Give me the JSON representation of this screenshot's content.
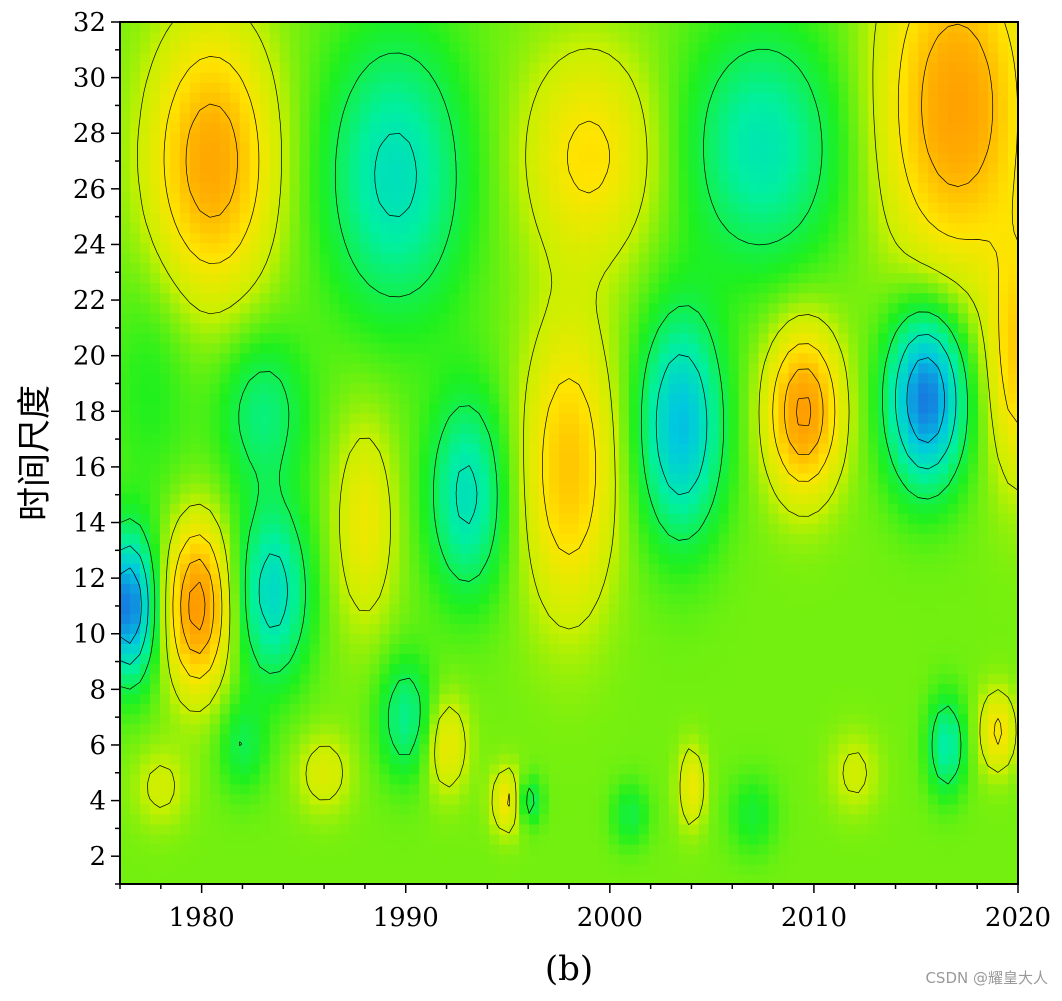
{
  "chart_data": {
    "type": "heatmap",
    "title": "",
    "xlabel": "",
    "ylabel": "时间尺度",
    "caption": "(b)",
    "xlim": [
      1976,
      2020
    ],
    "ylim": [
      1,
      32
    ],
    "x_ticks": [
      1980,
      1990,
      2000,
      2010,
      2020
    ],
    "y_ticks": [
      2,
      4,
      6,
      8,
      10,
      12,
      14,
      16,
      18,
      20,
      22,
      24,
      26,
      28,
      30,
      32
    ],
    "x_tick_labels": [
      "1980",
      "1990",
      "2000",
      "2010",
      "2020"
    ],
    "y_tick_labels": [
      "2",
      "4",
      "6",
      "8",
      "10",
      "12",
      "14",
      "16",
      "18",
      "20",
      "22",
      "24",
      "26",
      "28",
      "30",
      "32"
    ],
    "colormap": [
      "#1a6ee0",
      "#00c8e0",
      "#00f0a0",
      "#1ef01e",
      "#c8f000",
      "#ffe400",
      "#ffb000",
      "#ff9000"
    ],
    "grid": false,
    "contour_lines": true,
    "features": [
      {
        "x": 1980.5,
        "y": 27.0,
        "sx": 2.0,
        "sy": 3.2,
        "value": 0.8
      },
      {
        "x": 1989.5,
        "y": 26.5,
        "sx": 2.4,
        "sy": 3.5,
        "value": -0.55
      },
      {
        "x": 1999.0,
        "y": 27.2,
        "sx": 2.2,
        "sy": 2.6,
        "value": 0.45
      },
      {
        "x": 2007.5,
        "y": 27.5,
        "sx": 2.6,
        "sy": 3.0,
        "value": -0.5
      },
      {
        "x": 2017.0,
        "y": 29.0,
        "sx": 2.4,
        "sy": 4.0,
        "value": 0.85
      },
      {
        "x": 2020.0,
        "y": 20.0,
        "sx": 1.0,
        "sy": 3.0,
        "value": 0.55
      },
      {
        "x": 1976.4,
        "y": 11.0,
        "sx": 0.9,
        "sy": 1.8,
        "value": -1.0
      },
      {
        "x": 1979.8,
        "y": 11.0,
        "sx": 1.0,
        "sy": 2.0,
        "value": 0.95
      },
      {
        "x": 1983.5,
        "y": 11.5,
        "sx": 1.2,
        "sy": 2.2,
        "value": -0.6
      },
      {
        "x": 1988.0,
        "y": 14.0,
        "sx": 1.0,
        "sy": 2.5,
        "value": 0.35
      },
      {
        "x": 1993.0,
        "y": 15.0,
        "sx": 1.3,
        "sy": 2.5,
        "value": -0.55
      },
      {
        "x": 1998.0,
        "y": 16.0,
        "sx": 1.5,
        "sy": 3.5,
        "value": 0.6
      },
      {
        "x": 2003.5,
        "y": 17.5,
        "sx": 1.4,
        "sy": 2.8,
        "value": -0.75
      },
      {
        "x": 2009.5,
        "y": 18.0,
        "sx": 1.2,
        "sy": 2.0,
        "value": 0.9
      },
      {
        "x": 2015.5,
        "y": 18.5,
        "sx": 1.3,
        "sy": 2.2,
        "value": -1.0
      },
      {
        "x": 1977.5,
        "y": 19.0,
        "sx": 1.5,
        "sy": 3.0,
        "value": -0.15
      },
      {
        "x": 1983.0,
        "y": 18.0,
        "sx": 1.5,
        "sy": 2.0,
        "value": -0.35
      },
      {
        "x": 1978.0,
        "y": 4.5,
        "sx": 0.9,
        "sy": 1.0,
        "value": 0.2
      },
      {
        "x": 1982.0,
        "y": 6.0,
        "sx": 0.8,
        "sy": 1.2,
        "value": -0.25
      },
      {
        "x": 1986.0,
        "y": 5.0,
        "sx": 0.9,
        "sy": 1.0,
        "value": 0.25
      },
      {
        "x": 1990.0,
        "y": 7.0,
        "sx": 0.9,
        "sy": 1.5,
        "value": -0.4
      },
      {
        "x": 1992.0,
        "y": 6.0,
        "sx": 0.7,
        "sy": 1.2,
        "value": 0.35
      },
      {
        "x": 1995.0,
        "y": 4.0,
        "sx": 0.5,
        "sy": 0.8,
        "value": 0.45
      },
      {
        "x": 1996.0,
        "y": 4.0,
        "sx": 0.4,
        "sy": 0.6,
        "value": -0.4
      },
      {
        "x": 2004.0,
        "y": 4.5,
        "sx": 0.4,
        "sy": 1.0,
        "value": 0.4
      },
      {
        "x": 2007.0,
        "y": 3.5,
        "sx": 0.8,
        "sy": 1.0,
        "value": -0.2
      },
      {
        "x": 2012.0,
        "y": 5.0,
        "sx": 0.8,
        "sy": 1.0,
        "value": 0.2
      },
      {
        "x": 2016.5,
        "y": 6.0,
        "sx": 0.6,
        "sy": 1.2,
        "value": -0.5
      },
      {
        "x": 2019.0,
        "y": 6.5,
        "sx": 0.6,
        "sy": 1.0,
        "value": 0.45
      },
      {
        "x": 2001.0,
        "y": 3.5,
        "sx": 0.6,
        "sy": 0.8,
        "value": -0.25
      }
    ]
  },
  "watermark": "CSDN @耀皇大人"
}
